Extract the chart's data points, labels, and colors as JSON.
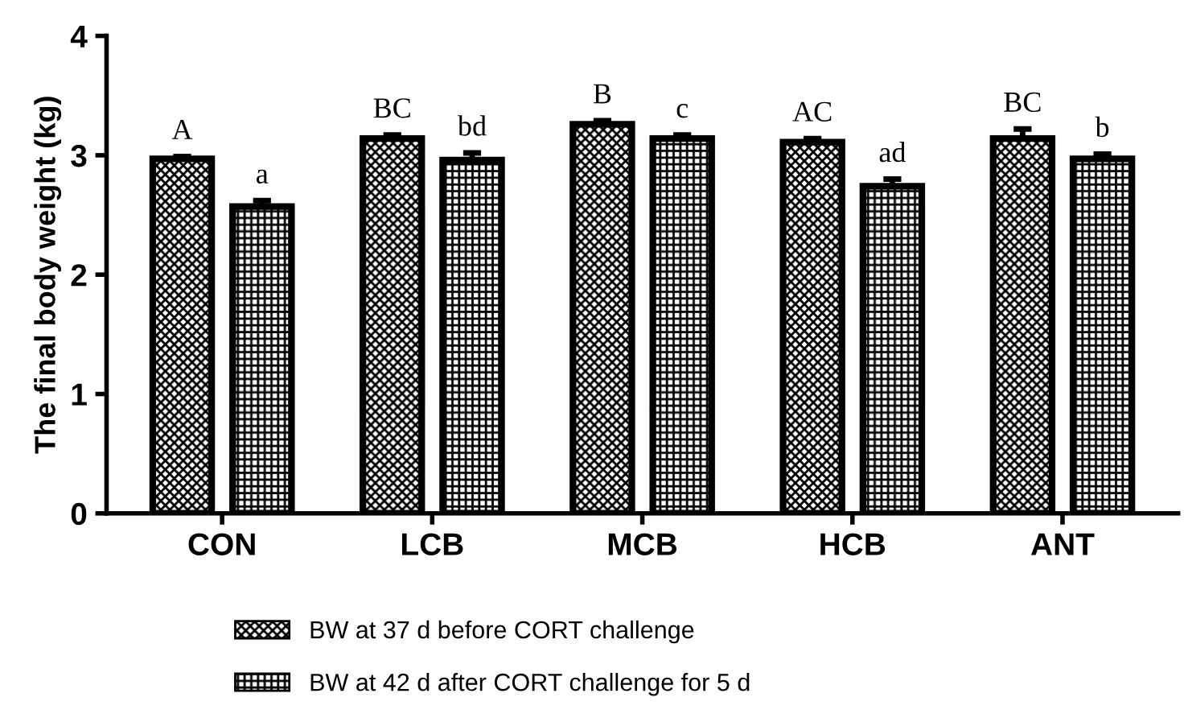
{
  "chart_data": {
    "type": "bar",
    "ylabel": "The final body weight (kg)",
    "categories": [
      "CON",
      "LCB",
      "MCB",
      "HCB",
      "ANT"
    ],
    "series": [
      {
        "name": "BW at 37 d before CORT challenge",
        "color": "#000000",
        "values": [
          2.97,
          3.14,
          3.26,
          3.11,
          3.14
        ],
        "errors": [
          0.02,
          0.03,
          0.03,
          0.03,
          0.08
        ],
        "value_labels": [
          "A",
          "BC",
          "B",
          "AC",
          "BC"
        ]
      },
      {
        "name": "BW at 42 d after CORT challenge for 5 d",
        "color": "#000000",
        "values": [
          2.57,
          2.96,
          3.14,
          2.74,
          2.97
        ],
        "errors": [
          0.05,
          0.06,
          0.03,
          0.06,
          0.04
        ],
        "value_labels": [
          "a",
          "bd",
          "c",
          "ad",
          "b"
        ]
      }
    ],
    "ylim": [
      0,
      4
    ],
    "yticks": [
      0,
      1,
      2,
      3,
      4
    ],
    "grid": false,
    "legend": "bottom"
  }
}
